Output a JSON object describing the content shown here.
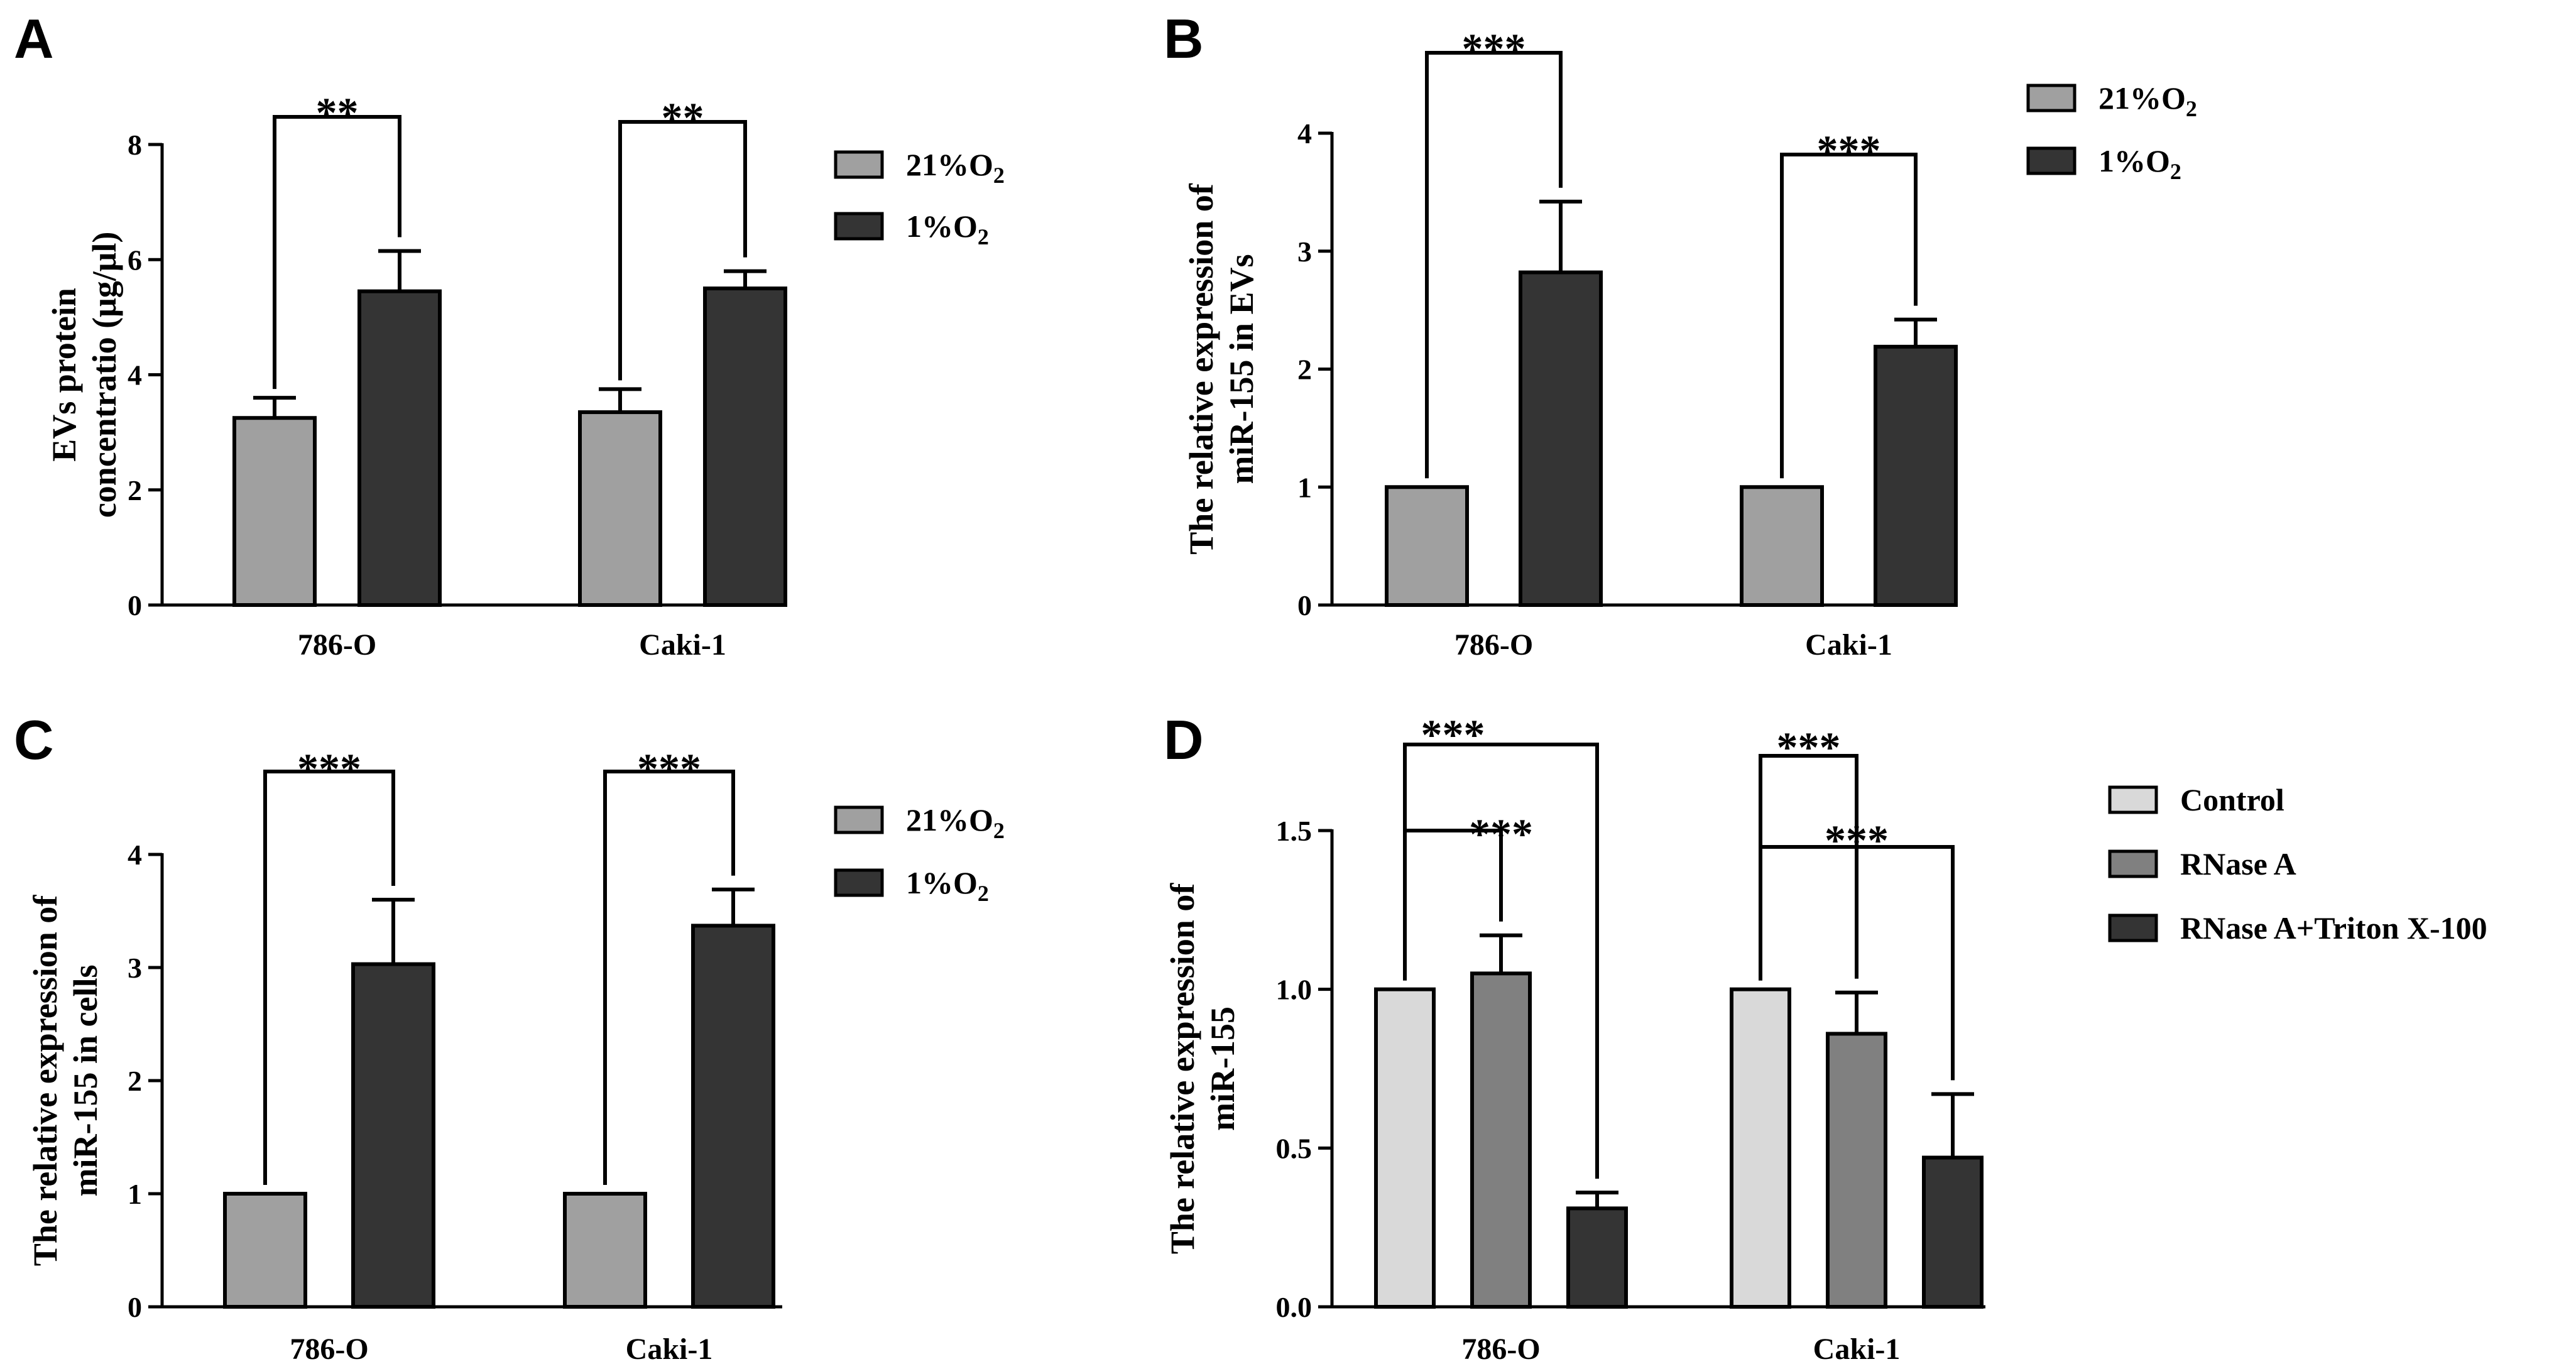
{
  "chart_data": [
    {
      "panel": "A",
      "type": "bar",
      "categories": [
        "786-O",
        "Caki-1"
      ],
      "ylabel": "EVs protein concentratio (μg/μl)",
      "ylim": [
        0,
        8
      ],
      "yticks": [
        "0",
        "2",
        "4",
        "6",
        "8"
      ],
      "series": [
        {
          "name": "21%O₂",
          "color": "#a0a0a0",
          "values": [
            3.25,
            3.35
          ],
          "errors": [
            0.35,
            0.4
          ]
        },
        {
          "name": "1%O₂",
          "color": "#343434",
          "values": [
            5.45,
            5.5
          ],
          "errors": [
            0.7,
            0.3
          ]
        }
      ],
      "significance": [
        {
          "category": 0,
          "from": 0,
          "to": 1,
          "label": "**"
        },
        {
          "category": 1,
          "from": 0,
          "to": 1,
          "label": "**"
        }
      ],
      "legend": "right"
    },
    {
      "panel": "B",
      "type": "bar",
      "categories": [
        "786-O",
        "Caki-1"
      ],
      "ylabel": "The relative expression of miR-155 in EVs",
      "ylim": [
        0,
        4
      ],
      "yticks": [
        "0",
        "1",
        "2",
        "3",
        "4"
      ],
      "series": [
        {
          "name": "21%O₂",
          "color": "#a0a0a0",
          "values": [
            1.0,
            1.0
          ],
          "errors": [
            0,
            0
          ]
        },
        {
          "name": "1%O₂",
          "color": "#343434",
          "values": [
            2.82,
            2.19
          ],
          "errors": [
            0.6,
            0.23
          ]
        }
      ],
      "significance": [
        {
          "category": 0,
          "from": 0,
          "to": 1,
          "label": "***"
        },
        {
          "category": 1,
          "from": 0,
          "to": 1,
          "label": "***"
        }
      ],
      "legend": "right"
    },
    {
      "panel": "C",
      "type": "bar",
      "categories": [
        "786-O",
        "Caki-1"
      ],
      "ylabel": "The relative expression of miR-155 in cells",
      "ylim": [
        0,
        4
      ],
      "yticks": [
        "0",
        "1",
        "2",
        "3",
        "4"
      ],
      "series": [
        {
          "name": "21%O₂",
          "color": "#a0a0a0",
          "values": [
            1.0,
            1.0
          ],
          "errors": [
            0,
            0
          ]
        },
        {
          "name": "1%O₂",
          "color": "#343434",
          "values": [
            3.03,
            3.37
          ],
          "errors": [
            0.57,
            0.32
          ]
        }
      ],
      "significance": [
        {
          "category": 0,
          "from": 0,
          "to": 1,
          "label": "***"
        },
        {
          "category": 1,
          "from": 0,
          "to": 1,
          "label": "***"
        }
      ],
      "legend": "right"
    },
    {
      "panel": "D",
      "type": "bar",
      "categories": [
        "786-O",
        "Caki-1"
      ],
      "ylabel": "The relative expression of miR-155",
      "ylim": [
        0,
        1.5
      ],
      "yticks": [
        "0.0",
        "0.5",
        "1.0",
        "1.5"
      ],
      "series": [
        {
          "name": "Control",
          "color": "#d9d9d9",
          "values": [
            1.0,
            1.0
          ],
          "errors": [
            0,
            0
          ]
        },
        {
          "name": "RNase A",
          "color": "#808080",
          "values": [
            1.05,
            0.86
          ],
          "errors": [
            0.12,
            0.13
          ]
        },
        {
          "name": "RNase A+Triton X-100",
          "color": "#343434",
          "values": [
            0.31,
            0.47
          ],
          "errors": [
            0.05,
            0.2
          ]
        }
      ],
      "significance": [
        {
          "category": 0,
          "from": 0,
          "to": 1,
          "label": "***"
        },
        {
          "category": 0,
          "from": 0,
          "to": 2,
          "label": "***"
        },
        {
          "category": 1,
          "from": 0,
          "to": 1,
          "label": "***"
        },
        {
          "category": 1,
          "from": 0,
          "to": 2,
          "label": "***"
        }
      ],
      "legend": "right"
    }
  ]
}
